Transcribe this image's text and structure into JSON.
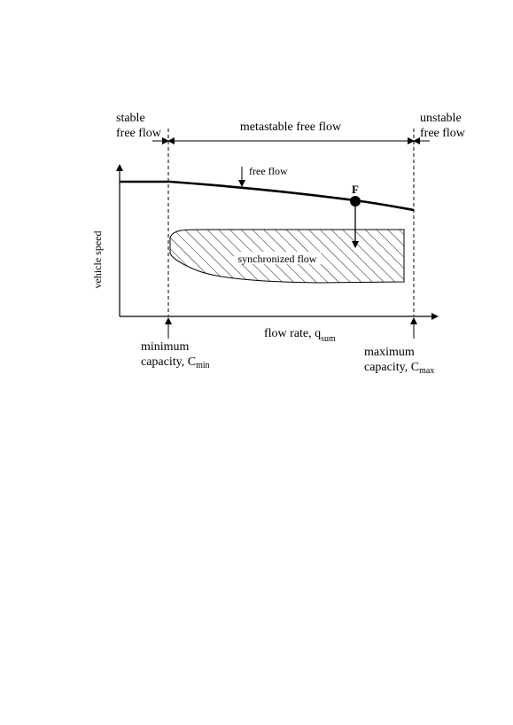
{
  "regions": {
    "stable_line1": "stable",
    "stable_line2": "free flow",
    "metastable": "metastable free flow",
    "unstable_line1": "unstable",
    "unstable_line2": "free flow"
  },
  "curves": {
    "free_flow_label": "free flow",
    "synchronized_label": "synchronized flow",
    "point_label": "F"
  },
  "axes": {
    "y_label": "vehicle speed",
    "x_label_main": "flow rate, q",
    "x_label_sub": "sum"
  },
  "markers": {
    "min_line1": "minimum",
    "min_line2_main": "capacity, C",
    "min_sub": "min",
    "max_line1": "maximum",
    "max_line2_main": "capacity, C",
    "max_sub": "max"
  }
}
